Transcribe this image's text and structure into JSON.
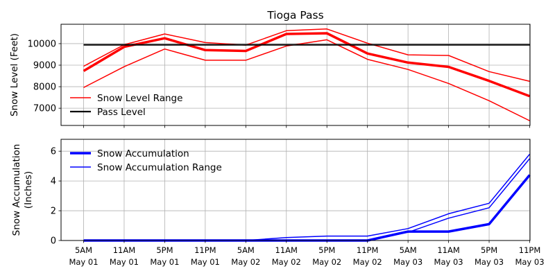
{
  "chart_data": [
    {
      "type": "line",
      "title": "Tioga Pass",
      "ylabel": "Snow Level (Feet)",
      "xlabel": "",
      "x": [
        "5AM May 01",
        "11AM May 01",
        "5PM May 01",
        "11PM May 01",
        "5AM May 02",
        "11AM May 02",
        "5PM May 02",
        "11PM May 02",
        "5AM May 03",
        "11AM May 03",
        "5PM May 03",
        "11PM May 03"
      ],
      "ylim": [
        6200,
        10900
      ],
      "yticks": [
        7000,
        8000,
        9000,
        10000
      ],
      "grid": true,
      "legend": "bottom-left",
      "series": [
        {
          "name": "Snow Level Range",
          "role": "range-upper",
          "color": "#ff0000",
          "values": [
            8950,
            9950,
            10450,
            10050,
            9930,
            10600,
            10680,
            10020,
            9480,
            9450,
            8700,
            8250
          ]
        },
        {
          "name": "",
          "role": "range-lower",
          "color": "#ff0000",
          "values": [
            7960,
            8930,
            9750,
            9230,
            9230,
            9890,
            10180,
            9270,
            8800,
            8150,
            7350,
            6420
          ]
        },
        {
          "name": "",
          "role": "main",
          "color": "#ff0000",
          "values": [
            8730,
            9850,
            10250,
            9700,
            9660,
            10450,
            10480,
            9540,
            9120,
            8920,
            8270,
            7560
          ]
        },
        {
          "name": "Pass Level",
          "role": "reference",
          "color": "#000000",
          "values": [
            9943,
            9943,
            9943,
            9943,
            9943,
            9943,
            9943,
            9943,
            9943,
            9943,
            9943,
            9943
          ]
        }
      ]
    },
    {
      "type": "line",
      "title": "",
      "ylabel": "Snow Accumulation\n(Inches)",
      "xlabel": "",
      "x": [
        "5AM May 01",
        "11AM May 01",
        "5PM May 01",
        "11PM May 01",
        "5AM May 02",
        "11AM May 02",
        "5PM May 02",
        "11PM May 02",
        "5AM May 03",
        "11AM May 03",
        "5PM May 03",
        "11PM May 03"
      ],
      "ylim": [
        0,
        6.8
      ],
      "yticks": [
        0,
        2,
        4,
        6
      ],
      "grid": true,
      "legend": "top-left",
      "series": [
        {
          "name": "Snow Accumulation",
          "role": "main",
          "color": "#0000ff",
          "values": [
            0,
            0,
            0,
            0,
            0,
            0,
            0,
            0,
            0.6,
            0.6,
            1.1,
            4.4
          ]
        },
        {
          "name": "Snow Accumulation Range",
          "role": "range-upper",
          "color": "#0000ff",
          "values": [
            0,
            0,
            0,
            0,
            0,
            0.2,
            0.3,
            0.3,
            0.8,
            1.8,
            2.5,
            5.8
          ]
        },
        {
          "name": "",
          "role": "range-lower",
          "color": "#0000ff",
          "values": [
            0,
            0,
            0,
            0,
            0,
            0,
            0,
            0,
            0.55,
            1.5,
            2.2,
            5.5
          ]
        }
      ]
    }
  ],
  "x_tick_labels": [
    {
      "time": "5AM",
      "date": "May 01"
    },
    {
      "time": "11AM",
      "date": "May 01"
    },
    {
      "time": "5PM",
      "date": "May 01"
    },
    {
      "time": "11PM",
      "date": "May 01"
    },
    {
      "time": "5AM",
      "date": "May 02"
    },
    {
      "time": "11AM",
      "date": "May 02"
    },
    {
      "time": "5PM",
      "date": "May 02"
    },
    {
      "time": "11PM",
      "date": "May 02"
    },
    {
      "time": "5AM",
      "date": "May 03"
    },
    {
      "time": "11AM",
      "date": "May 03"
    },
    {
      "time": "5PM",
      "date": "May 03"
    },
    {
      "time": "11PM",
      "date": "May 03"
    }
  ]
}
